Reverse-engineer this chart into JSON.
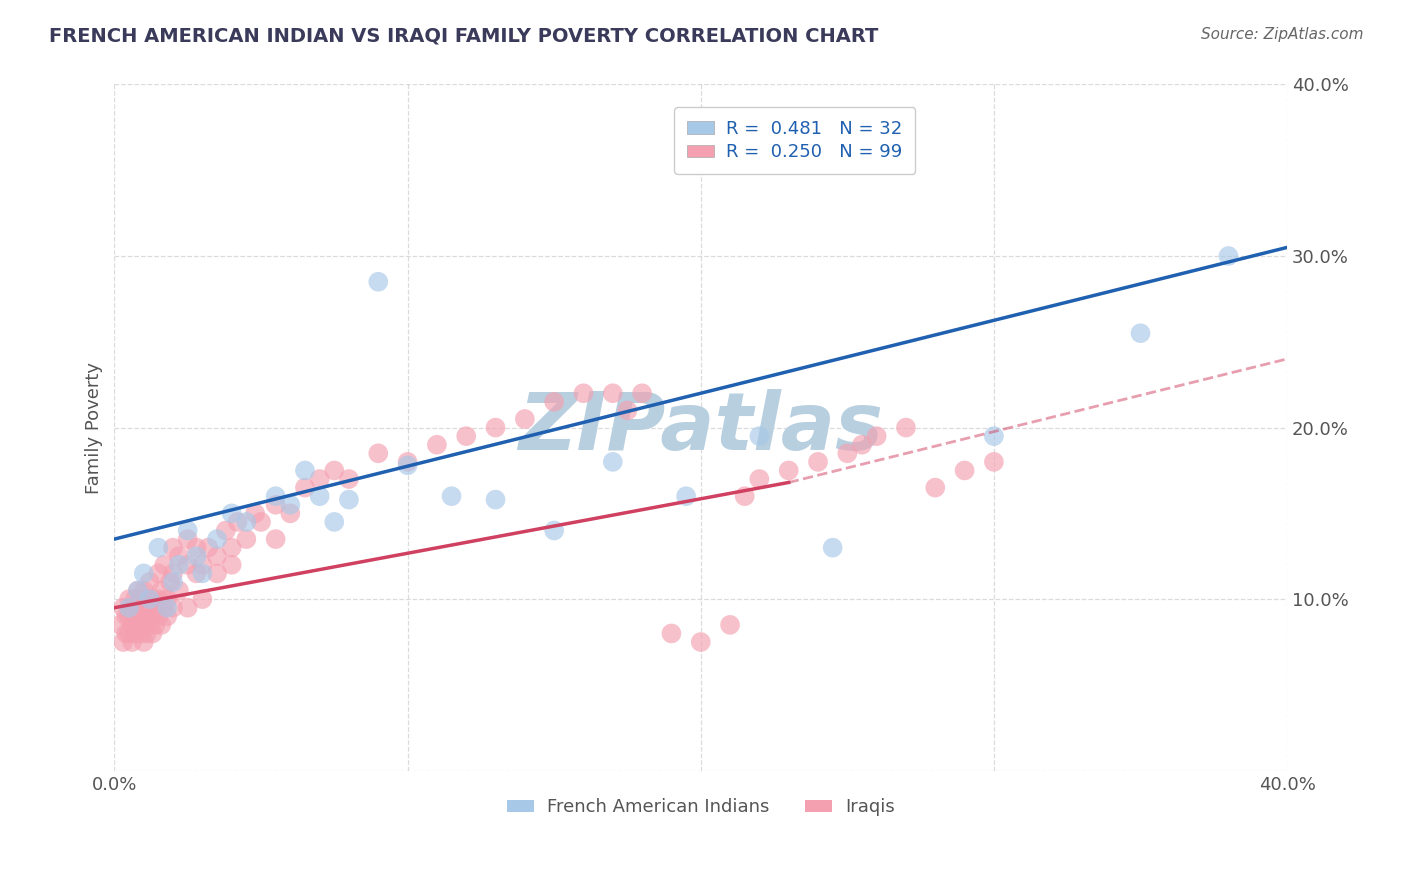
{
  "title": "FRENCH AMERICAN INDIAN VS IRAQI FAMILY POVERTY CORRELATION CHART",
  "source": "Source: ZipAtlas.com",
  "ylabel": "Family Poverty",
  "watermark": "ZIPatlas",
  "xlim": [
    0.0,
    0.4
  ],
  "ylim": [
    0.0,
    0.4
  ],
  "blue_color": "#a8c8e8",
  "pink_color": "#f4a0b0",
  "blue_line_color": "#2060b0",
  "pink_line_color": "#d04060",
  "legend_text_blue": "R =  0.481   N = 32",
  "legend_text_pink": "R =  0.250   N = 99",
  "legend_label_blue": "French American Indians",
  "legend_label_pink": "Iraqis",
  "grid_color": "#cccccc",
  "title_color": "#3a3a5a",
  "axis_label_color": "#555555",
  "tick_label_color": "#555555",
  "background_color": "#ffffff",
  "watermark_color": "#b8cfe0",
  "blue_trendline": [
    [
      0.0,
      0.135
    ],
    [
      0.4,
      0.305
    ]
  ],
  "pink_trendline_solid": [
    [
      0.0,
      0.095
    ],
    [
      0.23,
      0.168
    ]
  ],
  "pink_trendline_dashed": [
    [
      0.23,
      0.168
    ],
    [
      0.4,
      0.24
    ]
  ],
  "blue_points": [
    [
      0.005,
      0.095
    ],
    [
      0.008,
      0.105
    ],
    [
      0.01,
      0.115
    ],
    [
      0.012,
      0.1
    ],
    [
      0.015,
      0.13
    ],
    [
      0.018,
      0.095
    ],
    [
      0.02,
      0.11
    ],
    [
      0.022,
      0.12
    ],
    [
      0.025,
      0.14
    ],
    [
      0.028,
      0.125
    ],
    [
      0.03,
      0.115
    ],
    [
      0.035,
      0.135
    ],
    [
      0.04,
      0.15
    ],
    [
      0.045,
      0.145
    ],
    [
      0.055,
      0.16
    ],
    [
      0.06,
      0.155
    ],
    [
      0.065,
      0.175
    ],
    [
      0.07,
      0.16
    ],
    [
      0.075,
      0.145
    ],
    [
      0.08,
      0.158
    ],
    [
      0.09,
      0.285
    ],
    [
      0.1,
      0.178
    ],
    [
      0.115,
      0.16
    ],
    [
      0.13,
      0.158
    ],
    [
      0.15,
      0.14
    ],
    [
      0.17,
      0.18
    ],
    [
      0.195,
      0.16
    ],
    [
      0.22,
      0.195
    ],
    [
      0.245,
      0.13
    ],
    [
      0.3,
      0.195
    ],
    [
      0.35,
      0.255
    ],
    [
      0.38,
      0.3
    ]
  ],
  "pink_points": [
    [
      0.002,
      0.085
    ],
    [
      0.003,
      0.095
    ],
    [
      0.003,
      0.075
    ],
    [
      0.004,
      0.09
    ],
    [
      0.004,
      0.08
    ],
    [
      0.005,
      0.1
    ],
    [
      0.005,
      0.09
    ],
    [
      0.005,
      0.08
    ],
    [
      0.006,
      0.095
    ],
    [
      0.006,
      0.085
    ],
    [
      0.006,
      0.075
    ],
    [
      0.007,
      0.1
    ],
    [
      0.007,
      0.09
    ],
    [
      0.007,
      0.08
    ],
    [
      0.008,
      0.095
    ],
    [
      0.008,
      0.085
    ],
    [
      0.008,
      0.105
    ],
    [
      0.009,
      0.09
    ],
    [
      0.009,
      0.1
    ],
    [
      0.009,
      0.08
    ],
    [
      0.01,
      0.095
    ],
    [
      0.01,
      0.085
    ],
    [
      0.01,
      0.075
    ],
    [
      0.01,
      0.105
    ],
    [
      0.011,
      0.09
    ],
    [
      0.011,
      0.1
    ],
    [
      0.011,
      0.08
    ],
    [
      0.012,
      0.095
    ],
    [
      0.012,
      0.085
    ],
    [
      0.012,
      0.11
    ],
    [
      0.013,
      0.1
    ],
    [
      0.013,
      0.09
    ],
    [
      0.013,
      0.08
    ],
    [
      0.014,
      0.095
    ],
    [
      0.014,
      0.085
    ],
    [
      0.015,
      0.1
    ],
    [
      0.015,
      0.115
    ],
    [
      0.015,
      0.09
    ],
    [
      0.016,
      0.105
    ],
    [
      0.016,
      0.085
    ],
    [
      0.017,
      0.095
    ],
    [
      0.017,
      0.12
    ],
    [
      0.018,
      0.1
    ],
    [
      0.018,
      0.09
    ],
    [
      0.019,
      0.11
    ],
    [
      0.02,
      0.095
    ],
    [
      0.02,
      0.115
    ],
    [
      0.02,
      0.13
    ],
    [
      0.022,
      0.125
    ],
    [
      0.022,
      0.105
    ],
    [
      0.025,
      0.12
    ],
    [
      0.025,
      0.095
    ],
    [
      0.025,
      0.135
    ],
    [
      0.028,
      0.115
    ],
    [
      0.028,
      0.13
    ],
    [
      0.03,
      0.12
    ],
    [
      0.03,
      0.1
    ],
    [
      0.032,
      0.13
    ],
    [
      0.035,
      0.125
    ],
    [
      0.035,
      0.115
    ],
    [
      0.038,
      0.14
    ],
    [
      0.04,
      0.13
    ],
    [
      0.04,
      0.12
    ],
    [
      0.042,
      0.145
    ],
    [
      0.045,
      0.135
    ],
    [
      0.048,
      0.15
    ],
    [
      0.05,
      0.145
    ],
    [
      0.055,
      0.155
    ],
    [
      0.055,
      0.135
    ],
    [
      0.06,
      0.15
    ],
    [
      0.065,
      0.165
    ],
    [
      0.07,
      0.17
    ],
    [
      0.075,
      0.175
    ],
    [
      0.08,
      0.17
    ],
    [
      0.09,
      0.185
    ],
    [
      0.1,
      0.18
    ],
    [
      0.11,
      0.19
    ],
    [
      0.12,
      0.195
    ],
    [
      0.13,
      0.2
    ],
    [
      0.14,
      0.205
    ],
    [
      0.15,
      0.215
    ],
    [
      0.16,
      0.22
    ],
    [
      0.17,
      0.22
    ],
    [
      0.175,
      0.21
    ],
    [
      0.18,
      0.22
    ],
    [
      0.19,
      0.08
    ],
    [
      0.2,
      0.075
    ],
    [
      0.21,
      0.085
    ],
    [
      0.215,
      0.16
    ],
    [
      0.22,
      0.17
    ],
    [
      0.23,
      0.175
    ],
    [
      0.24,
      0.18
    ],
    [
      0.25,
      0.185
    ],
    [
      0.255,
      0.19
    ],
    [
      0.26,
      0.195
    ],
    [
      0.27,
      0.2
    ],
    [
      0.28,
      0.165
    ],
    [
      0.29,
      0.175
    ],
    [
      0.3,
      0.18
    ]
  ]
}
